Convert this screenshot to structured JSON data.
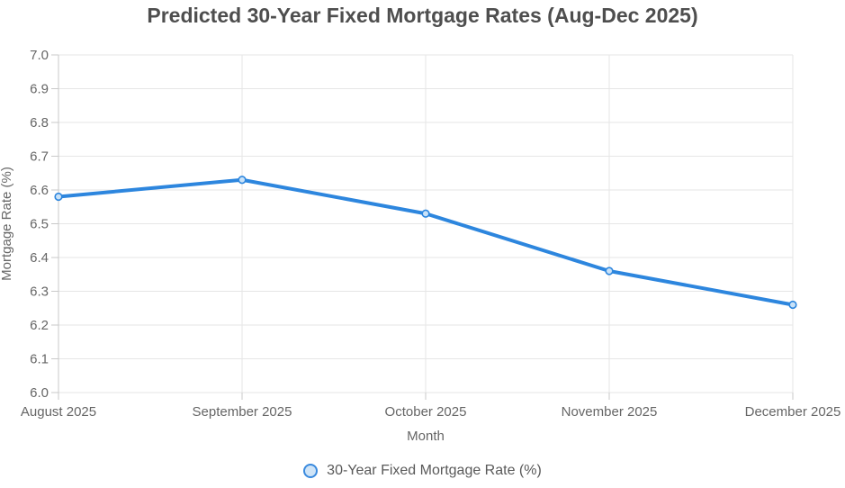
{
  "chart_data": {
    "type": "line",
    "title": "Predicted 30-Year Fixed Mortgage Rates (Aug-Dec 2025)",
    "xlabel": "Month",
    "ylabel": "Mortgage Rate (%)",
    "categories": [
      "August 2025",
      "September 2025",
      "October 2025",
      "November 2025",
      "December 2025"
    ],
    "series": [
      {
        "name": "30-Year Fixed Mortgage Rate (%)",
        "values": [
          6.58,
          6.63,
          6.53,
          6.36,
          6.26
        ]
      }
    ],
    "ylim": [
      6.0,
      7.0
    ],
    "ytick_step": 0.1,
    "ytick_labels": [
      "6.0",
      "6.1",
      "6.2",
      "6.3",
      "6.4",
      "6.5",
      "6.6",
      "6.7",
      "6.8",
      "6.9",
      "7.0"
    ],
    "grid": true,
    "legend_position": "bottom",
    "colors": {
      "line": "#2d86de",
      "marker_fill": "#c9e2f8",
      "legend_marker_fill": "#cfe4f7",
      "legend_marker_stroke": "#3a8ade",
      "grid": "#e6e6e6",
      "axis": "#c9c9c9",
      "title_text": "#4e4e4e",
      "axis_text": "#666666",
      "legend_text": "#595959"
    }
  }
}
